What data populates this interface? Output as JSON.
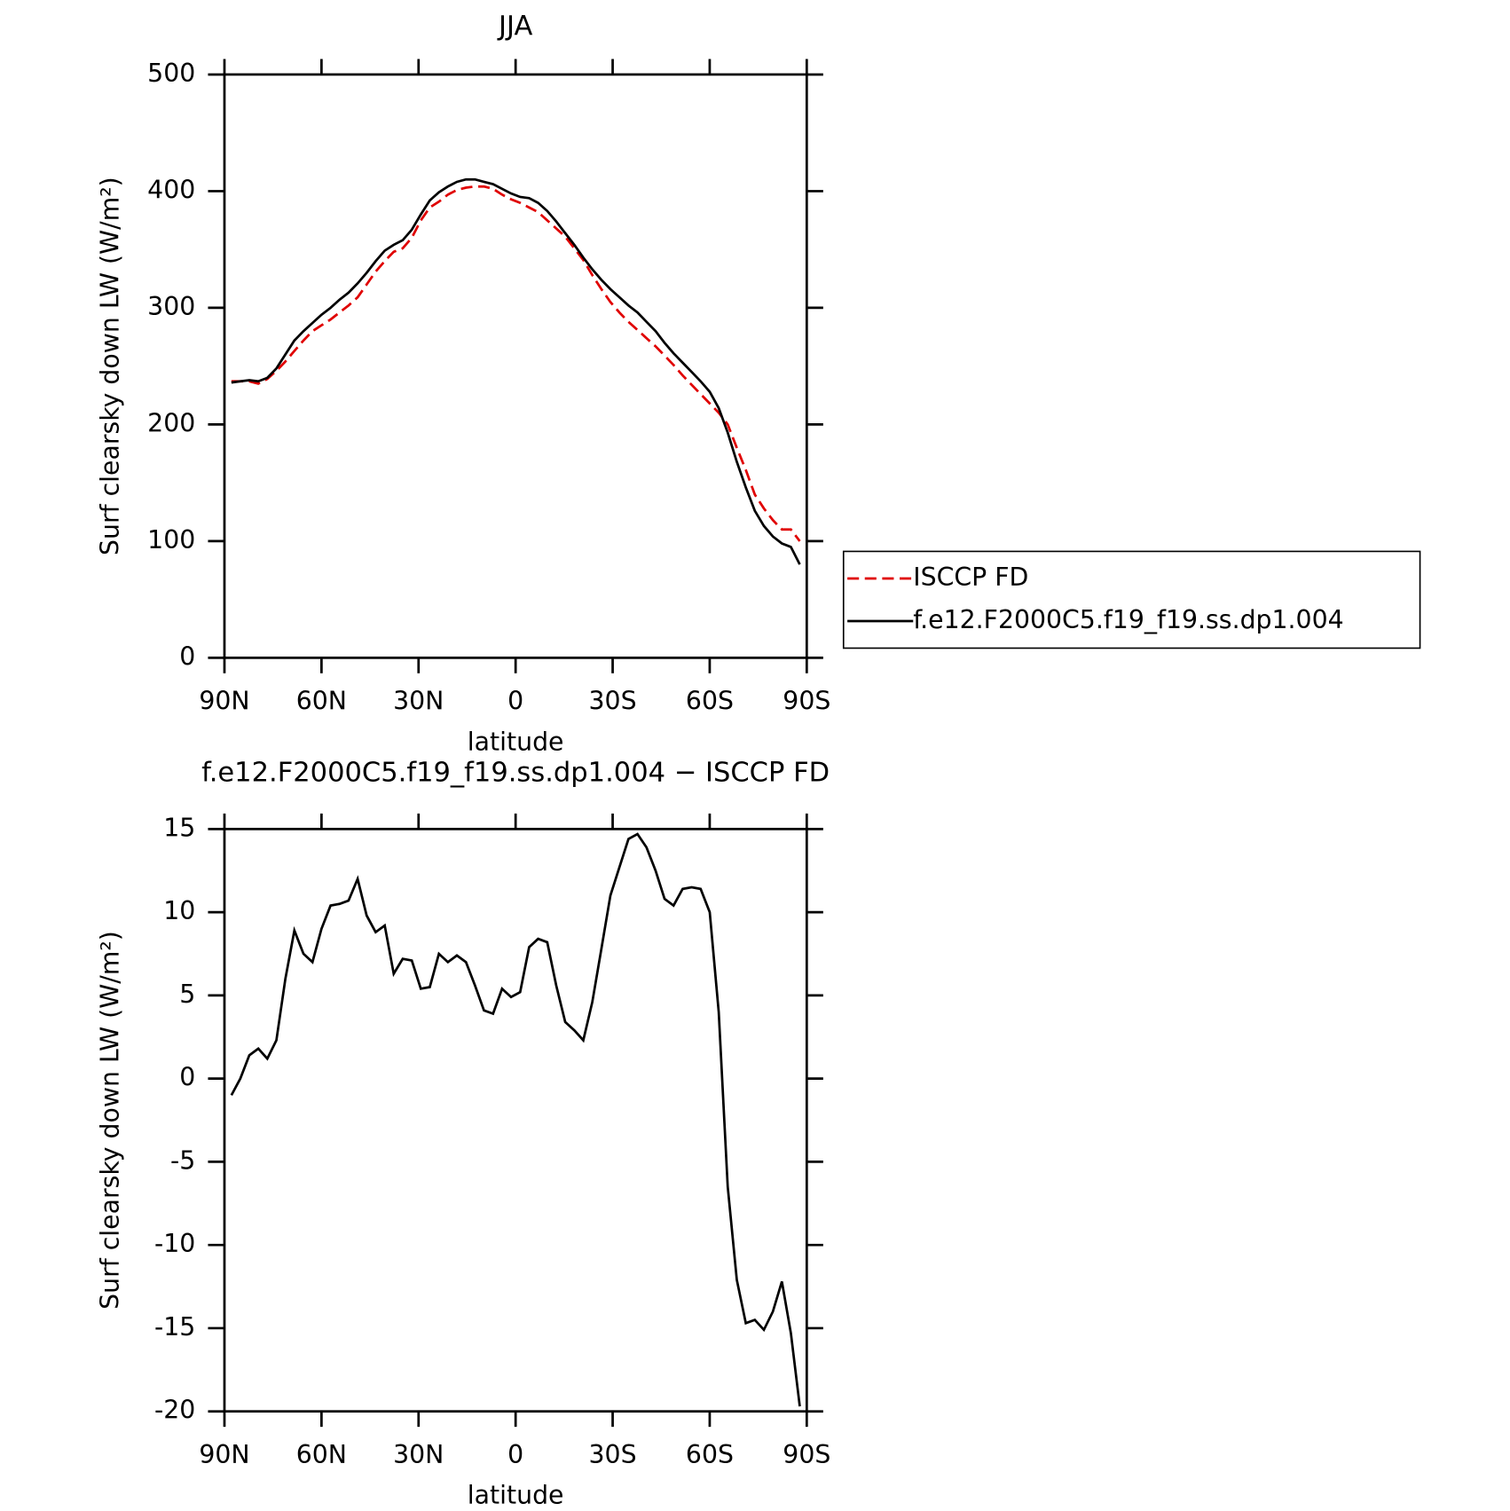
{
  "chart_data": [
    {
      "type": "line",
      "title": "JJA",
      "xlabel": "latitude",
      "ylabel": "Surf clearsky down LW (W/m²)",
      "x": [
        87.86,
        85.1,
        82.31,
        79.53,
        76.74,
        73.95,
        71.16,
        68.37,
        65.58,
        62.79,
        60.0,
        57.21,
        54.42,
        51.63,
        48.84,
        46.05,
        43.26,
        40.47,
        37.67,
        34.88,
        32.09,
        29.3,
        26.51,
        23.72,
        20.93,
        18.14,
        15.35,
        12.56,
        9.77,
        6.98,
        4.19,
        1.4,
        -1.4,
        -4.19,
        -6.98,
        -9.77,
        -12.56,
        -15.35,
        -18.14,
        -20.93,
        -23.72,
        -26.51,
        -29.3,
        -32.09,
        -34.88,
        -37.67,
        -40.47,
        -43.26,
        -46.05,
        -48.84,
        -51.63,
        -54.42,
        -57.21,
        -60.0,
        -62.79,
        -65.58,
        -68.37,
        -71.16,
        -73.95,
        -76.74,
        -79.53,
        -82.31,
        -85.1,
        -87.86
      ],
      "series": [
        {
          "name": "ISCCP FD",
          "color": "#e00000",
          "dash": true,
          "values": [
            237,
            237,
            237,
            235,
            239,
            246,
            254,
            263,
            272,
            280,
            285,
            290,
            296,
            302,
            309,
            320,
            331,
            340,
            348,
            351,
            360,
            375,
            386,
            391,
            397,
            401,
            403,
            404,
            404,
            402,
            397,
            393,
            390,
            386,
            382,
            375,
            368,
            361,
            351,
            341,
            328,
            316,
            305,
            296,
            288,
            281,
            274,
            267,
            259,
            251,
            242,
            234,
            226,
            218,
            210,
            200,
            180,
            161,
            140,
            128,
            118,
            110,
            110,
            100
          ]
        },
        {
          "name": "f.e12.F2000C5.f19_f19.ss.dp1.004",
          "color": "#000000",
          "dash": false,
          "values": [
            236,
            237,
            238,
            237,
            240,
            248,
            260,
            272,
            280,
            287,
            294,
            300,
            307,
            313,
            321,
            330,
            340,
            349,
            354,
            358,
            367,
            380,
            392,
            399,
            404,
            408,
            410,
            410,
            408,
            406,
            402,
            398,
            395,
            394,
            390,
            383,
            374,
            364,
            354,
            343,
            333,
            324,
            316,
            309,
            302,
            296,
            288,
            280,
            270,
            261,
            253,
            245,
            237,
            228,
            214,
            193,
            168,
            146,
            126,
            113,
            104,
            98,
            95,
            80
          ]
        }
      ],
      "xlim": [
        90,
        -90
      ],
      "xticks": [
        {
          "value": 90,
          "label": "90N"
        },
        {
          "value": 60,
          "label": "60N"
        },
        {
          "value": 30,
          "label": "30N"
        },
        0,
        {
          "value": -30,
          "label": "30S"
        },
        {
          "value": -60,
          "label": "60S"
        },
        {
          "value": -90,
          "label": "90S"
        }
      ],
      "ylim": [
        0,
        500
      ],
      "yticks": [
        0,
        100,
        200,
        300,
        400,
        500
      ],
      "legend": "right"
    },
    {
      "type": "line",
      "title": "f.e12.F2000C5.f19_f19.ss.dp1.004 − ISCCP FD",
      "xlabel": "latitude",
      "ylabel": "Surf clearsky down LW (W/m²)",
      "x": [
        87.86,
        85.1,
        82.31,
        79.53,
        76.74,
        73.95,
        71.16,
        68.37,
        65.58,
        62.79,
        60.0,
        57.21,
        54.42,
        51.63,
        48.84,
        46.05,
        43.26,
        40.47,
        37.67,
        34.88,
        32.09,
        29.3,
        26.51,
        23.72,
        20.93,
        18.14,
        15.35,
        12.56,
        9.77,
        6.98,
        4.19,
        1.4,
        -1.4,
        -4.19,
        -6.98,
        -9.77,
        -12.56,
        -15.35,
        -18.14,
        -20.93,
        -23.72,
        -26.51,
        -29.3,
        -32.09,
        -34.88,
        -37.67,
        -40.47,
        -43.26,
        -46.05,
        -48.84,
        -51.63,
        -54.42,
        -57.21,
        -60.0,
        -62.79,
        -65.58,
        -68.37,
        -71.16,
        -73.95,
        -76.74,
        -79.53,
        -82.31,
        -85.1,
        -87.86
      ],
      "series": [
        {
          "color": "#000000",
          "dash": false,
          "values": [
            -1.0,
            0.0,
            1.4,
            1.8,
            1.2,
            2.3,
            6.0,
            8.9,
            7.5,
            7.0,
            9.0,
            10.4,
            10.5,
            10.7,
            12.0,
            9.8,
            8.8,
            9.2,
            6.3,
            7.2,
            7.1,
            5.4,
            5.5,
            7.5,
            7.0,
            7.4,
            7.0,
            5.6,
            4.1,
            3.9,
            5.4,
            4.9,
            5.2,
            7.9,
            8.4,
            8.2,
            5.6,
            3.4,
            2.9,
            2.3,
            4.6,
            7.8,
            11.0,
            12.7,
            14.4,
            14.7,
            13.9,
            12.5,
            10.8,
            10.4,
            11.4,
            11.5,
            11.4,
            10.0,
            4.0,
            -6.5,
            -12.1,
            -14.7,
            -14.5,
            -15.1,
            -14.0,
            -12.2,
            -15.3,
            -19.7
          ]
        }
      ],
      "xlim": [
        90,
        -90
      ],
      "xticks": [
        {
          "value": 90,
          "label": "90N"
        },
        {
          "value": 60,
          "label": "60N"
        },
        {
          "value": 30,
          "label": "30N"
        },
        0,
        {
          "value": -30,
          "label": "30S"
        },
        {
          "value": -60,
          "label": "60S"
        },
        {
          "value": -90,
          "label": "90S"
        }
      ],
      "ylim": [
        -20,
        15
      ],
      "yticks": [
        -20,
        -15,
        -10,
        -5,
        0,
        5,
        10,
        15
      ]
    }
  ]
}
